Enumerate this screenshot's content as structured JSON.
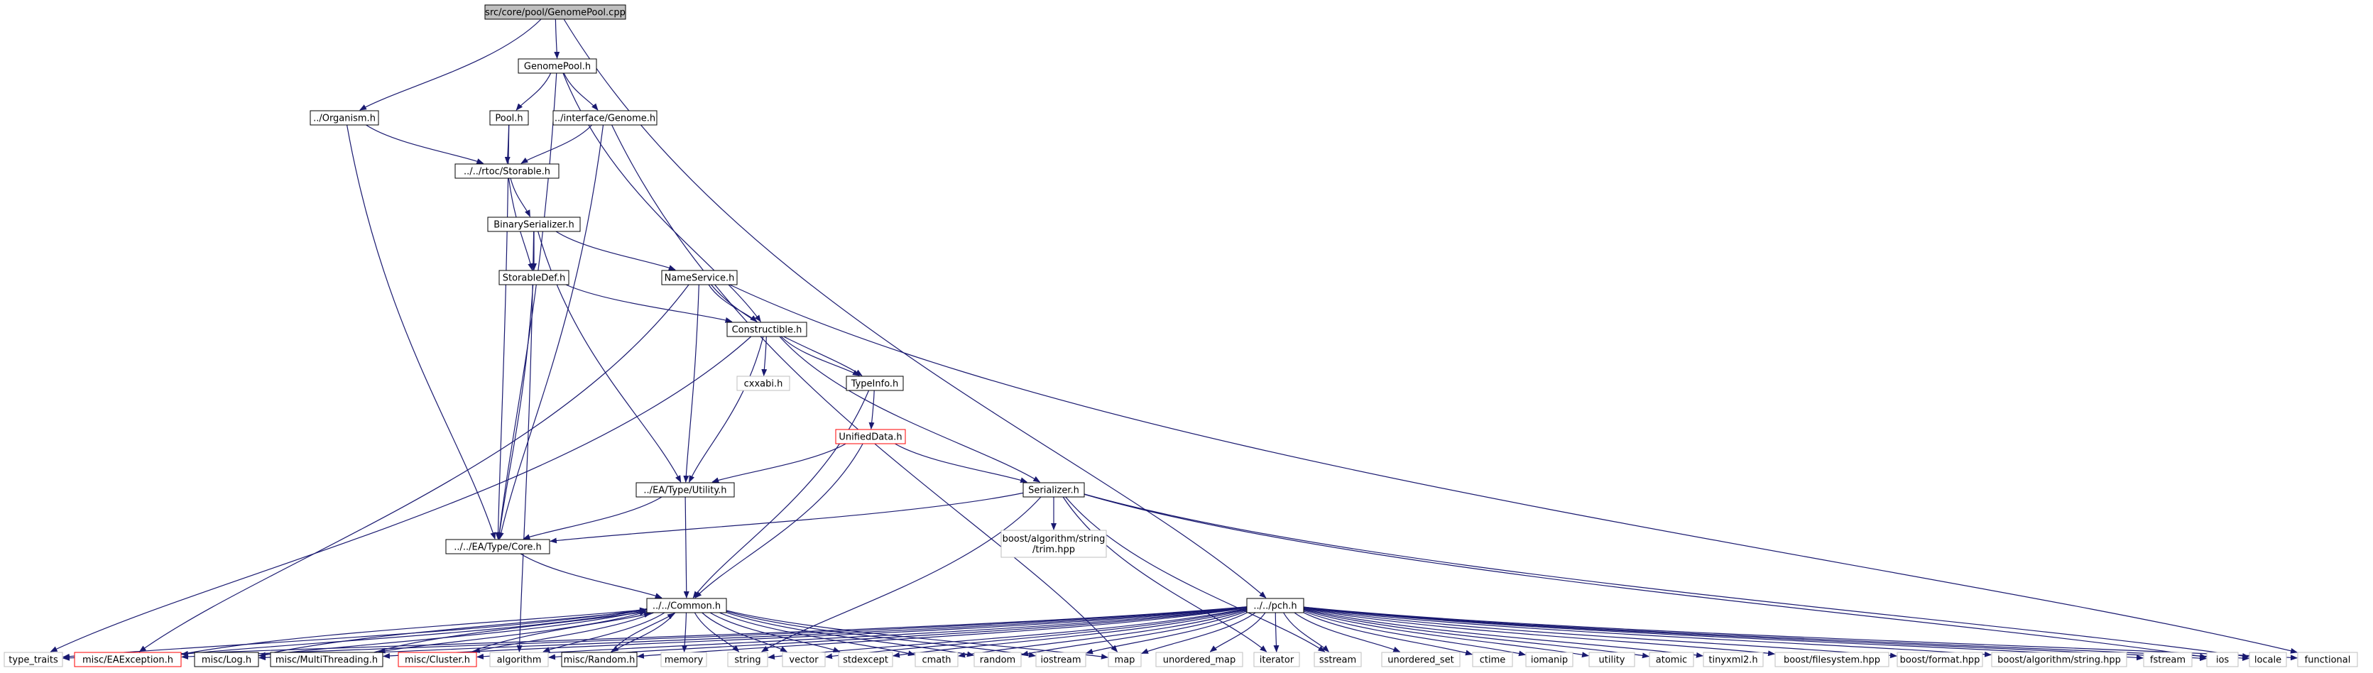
{
  "colors": {
    "edge": "#191970",
    "node_border": "#000000",
    "node_root_fill": "#bfbfbf",
    "node_fill": "#ffffff",
    "node_external_border": "#bfbfbf",
    "node_incomplete_border": "#ff0000",
    "text": "#000000"
  },
  "nodes": [
    {
      "id": "root",
      "label": "src/core/pool/GenomePool.cpp",
      "kind": "root"
    },
    {
      "id": "genomepool_h",
      "label": "GenomePool.h",
      "kind": "normal"
    },
    {
      "id": "organism_h",
      "label": "../Organism.h",
      "kind": "normal"
    },
    {
      "id": "pool_h",
      "label": "Pool.h",
      "kind": "normal"
    },
    {
      "id": "genome_h",
      "label": "../interface/Genome.h",
      "kind": "normal"
    },
    {
      "id": "storable_h",
      "label": "../../rtoc/Storable.h",
      "kind": "normal"
    },
    {
      "id": "binaryserializer_h",
      "label": "BinarySerializer.h",
      "kind": "normal"
    },
    {
      "id": "storabledef_h",
      "label": "StorableDef.h",
      "kind": "normal"
    },
    {
      "id": "nameservice_h",
      "label": "NameService.h",
      "kind": "normal"
    },
    {
      "id": "constructible_h",
      "label": "Constructible.h",
      "kind": "normal"
    },
    {
      "id": "cxxabi_h",
      "label": "cxxabi.h",
      "kind": "external"
    },
    {
      "id": "typeinfo_h",
      "label": "TypeInfo.h",
      "kind": "normal"
    },
    {
      "id": "unifieddata_h",
      "label": "UnifiedData.h",
      "kind": "incomplete"
    },
    {
      "id": "utility_h",
      "label": "../EA/Type/Utility.h",
      "kind": "normal"
    },
    {
      "id": "serializer_h",
      "label": "Serializer.h",
      "kind": "normal"
    },
    {
      "id": "trim_hpp",
      "label": "boost/algorithm/string\n/trim.hpp",
      "kind": "external"
    },
    {
      "id": "core_h",
      "label": "../../EA/Type/Core.h",
      "kind": "normal"
    },
    {
      "id": "common_h",
      "label": "../../Common.h",
      "kind": "normal"
    },
    {
      "id": "pch_h",
      "label": "../../pch.h",
      "kind": "normal"
    },
    {
      "id": "type_traits",
      "label": "type_traits",
      "kind": "external"
    },
    {
      "id": "eaexception_h",
      "label": "misc/EAException.h",
      "kind": "incomplete"
    },
    {
      "id": "log_h",
      "label": "misc/Log.h",
      "kind": "normal"
    },
    {
      "id": "multithreading_h",
      "label": "misc/MultiThreading.h",
      "kind": "normal"
    },
    {
      "id": "cluster_h",
      "label": "misc/Cluster.h",
      "kind": "incomplete"
    },
    {
      "id": "algorithm",
      "label": "algorithm",
      "kind": "external"
    },
    {
      "id": "random_h",
      "label": "misc/Random.h",
      "kind": "normal"
    },
    {
      "id": "memory",
      "label": "memory",
      "kind": "external"
    },
    {
      "id": "string",
      "label": "string",
      "kind": "external"
    },
    {
      "id": "vector",
      "label": "vector",
      "kind": "external"
    },
    {
      "id": "stdexcept",
      "label": "stdexcept",
      "kind": "external"
    },
    {
      "id": "cmath",
      "label": "cmath",
      "kind": "external"
    },
    {
      "id": "random",
      "label": "random",
      "kind": "external"
    },
    {
      "id": "iostream",
      "label": "iostream",
      "kind": "external"
    },
    {
      "id": "map",
      "label": "map",
      "kind": "external"
    },
    {
      "id": "unordered_map",
      "label": "unordered_map",
      "kind": "external"
    },
    {
      "id": "iterator",
      "label": "iterator",
      "kind": "external"
    },
    {
      "id": "sstream",
      "label": "sstream",
      "kind": "external"
    },
    {
      "id": "unordered_set",
      "label": "unordered_set",
      "kind": "external"
    },
    {
      "id": "ctime",
      "label": "ctime",
      "kind": "external"
    },
    {
      "id": "iomanip",
      "label": "iomanip",
      "kind": "external"
    },
    {
      "id": "utility",
      "label": "utility",
      "kind": "external"
    },
    {
      "id": "atomic",
      "label": "atomic",
      "kind": "external"
    },
    {
      "id": "tinyxml2_h",
      "label": "tinyxml2.h",
      "kind": "external"
    },
    {
      "id": "filesystem_hpp",
      "label": "boost/filesystem.hpp",
      "kind": "external"
    },
    {
      "id": "format_hpp",
      "label": "boost/format.hpp",
      "kind": "external"
    },
    {
      "id": "string_hpp",
      "label": "boost/algorithm/string.hpp",
      "kind": "external"
    },
    {
      "id": "fstream",
      "label": "fstream",
      "kind": "external"
    },
    {
      "id": "ios",
      "label": "ios",
      "kind": "external"
    },
    {
      "id": "locale",
      "label": "locale",
      "kind": "external"
    },
    {
      "id": "functional",
      "label": "functional",
      "kind": "external"
    }
  ],
  "edges": [
    [
      "root",
      "genomepool_h"
    ],
    [
      "root",
      "organism_h"
    ],
    [
      "root",
      "pch_h"
    ],
    [
      "genomepool_h",
      "pool_h"
    ],
    [
      "genomepool_h",
      "genome_h"
    ],
    [
      "genomepool_h",
      "constructible_h"
    ],
    [
      "genomepool_h",
      "core_h"
    ],
    [
      "organism_h",
      "storable_h"
    ],
    [
      "organism_h",
      "core_h"
    ],
    [
      "pool_h",
      "storable_h"
    ],
    [
      "pool_h",
      "core_h"
    ],
    [
      "genome_h",
      "storable_h"
    ],
    [
      "genome_h",
      "core_h"
    ],
    [
      "genome_h",
      "map"
    ],
    [
      "storable_h",
      "binaryserializer_h"
    ],
    [
      "storable_h",
      "storabledef_h"
    ],
    [
      "binaryserializer_h",
      "storabledef_h"
    ],
    [
      "binaryserializer_h",
      "nameservice_h"
    ],
    [
      "binaryserializer_h",
      "utility_h"
    ],
    [
      "binaryserializer_h",
      "algorithm"
    ],
    [
      "storabledef_h",
      "constructible_h"
    ],
    [
      "storabledef_h",
      "core_h"
    ],
    [
      "nameservice_h",
      "constructible_h"
    ],
    [
      "nameservice_h",
      "typeinfo_h"
    ],
    [
      "nameservice_h",
      "utility_h"
    ],
    [
      "nameservice_h",
      "functional"
    ],
    [
      "nameservice_h",
      "eaexception_h"
    ],
    [
      "constructible_h",
      "cxxabi_h"
    ],
    [
      "constructible_h",
      "typeinfo_h"
    ],
    [
      "constructible_h",
      "utility_h"
    ],
    [
      "constructible_h",
      "serializer_h"
    ],
    [
      "constructible_h",
      "type_traits"
    ],
    [
      "typeinfo_h",
      "unifieddata_h"
    ],
    [
      "typeinfo_h",
      "common_h"
    ],
    [
      "unifieddata_h",
      "utility_h"
    ],
    [
      "unifieddata_h",
      "serializer_h"
    ],
    [
      "unifieddata_h",
      "common_h"
    ],
    [
      "utility_h",
      "core_h"
    ],
    [
      "utility_h",
      "common_h"
    ],
    [
      "serializer_h",
      "trim_hpp"
    ],
    [
      "serializer_h",
      "core_h"
    ],
    [
      "serializer_h",
      "string"
    ],
    [
      "serializer_h",
      "iterator"
    ],
    [
      "serializer_h",
      "sstream"
    ],
    [
      "serializer_h",
      "ios"
    ],
    [
      "serializer_h",
      "locale"
    ],
    [
      "core_h",
      "common_h"
    ],
    [
      "common_h",
      "type_traits"
    ],
    [
      "common_h",
      "eaexception_h"
    ],
    [
      "common_h",
      "log_h"
    ],
    [
      "common_h",
      "multithreading_h"
    ],
    [
      "common_h",
      "cluster_h"
    ],
    [
      "common_h",
      "algorithm"
    ],
    [
      "common_h",
      "random_h"
    ],
    [
      "common_h",
      "memory"
    ],
    [
      "common_h",
      "string"
    ],
    [
      "common_h",
      "vector"
    ],
    [
      "common_h",
      "stdexcept"
    ],
    [
      "common_h",
      "cmath"
    ],
    [
      "common_h",
      "random"
    ],
    [
      "common_h",
      "iostream"
    ],
    [
      "common_h",
      "map"
    ],
    [
      "pch_h",
      "type_traits"
    ],
    [
      "pch_h",
      "eaexception_h"
    ],
    [
      "pch_h",
      "log_h"
    ],
    [
      "pch_h",
      "multithreading_h"
    ],
    [
      "pch_h",
      "cluster_h"
    ],
    [
      "pch_h",
      "algorithm"
    ],
    [
      "pch_h",
      "random_h"
    ],
    [
      "pch_h",
      "string"
    ],
    [
      "pch_h",
      "vector"
    ],
    [
      "pch_h",
      "stdexcept"
    ],
    [
      "pch_h",
      "cmath"
    ],
    [
      "pch_h",
      "random"
    ],
    [
      "pch_h",
      "iostream"
    ],
    [
      "pch_h",
      "map"
    ],
    [
      "pch_h",
      "unordered_map"
    ],
    [
      "pch_h",
      "iterator"
    ],
    [
      "pch_h",
      "sstream"
    ],
    [
      "pch_h",
      "unordered_set"
    ],
    [
      "pch_h",
      "ctime"
    ],
    [
      "pch_h",
      "iomanip"
    ],
    [
      "pch_h",
      "utility"
    ],
    [
      "pch_h",
      "atomic"
    ],
    [
      "pch_h",
      "tinyxml2_h"
    ],
    [
      "pch_h",
      "filesystem_hpp"
    ],
    [
      "pch_h",
      "format_hpp"
    ],
    [
      "pch_h",
      "string_hpp"
    ],
    [
      "pch_h",
      "fstream"
    ],
    [
      "pch_h",
      "ios"
    ],
    [
      "pch_h",
      "locale"
    ],
    [
      "pch_h",
      "functional"
    ],
    [
      "log_h",
      "common_h"
    ],
    [
      "multithreading_h",
      "common_h"
    ],
    [
      "random_h",
      "common_h"
    ],
    [
      "eaexception_h",
      "common_h"
    ],
    [
      "cluster_h",
      "common_h"
    ]
  ]
}
